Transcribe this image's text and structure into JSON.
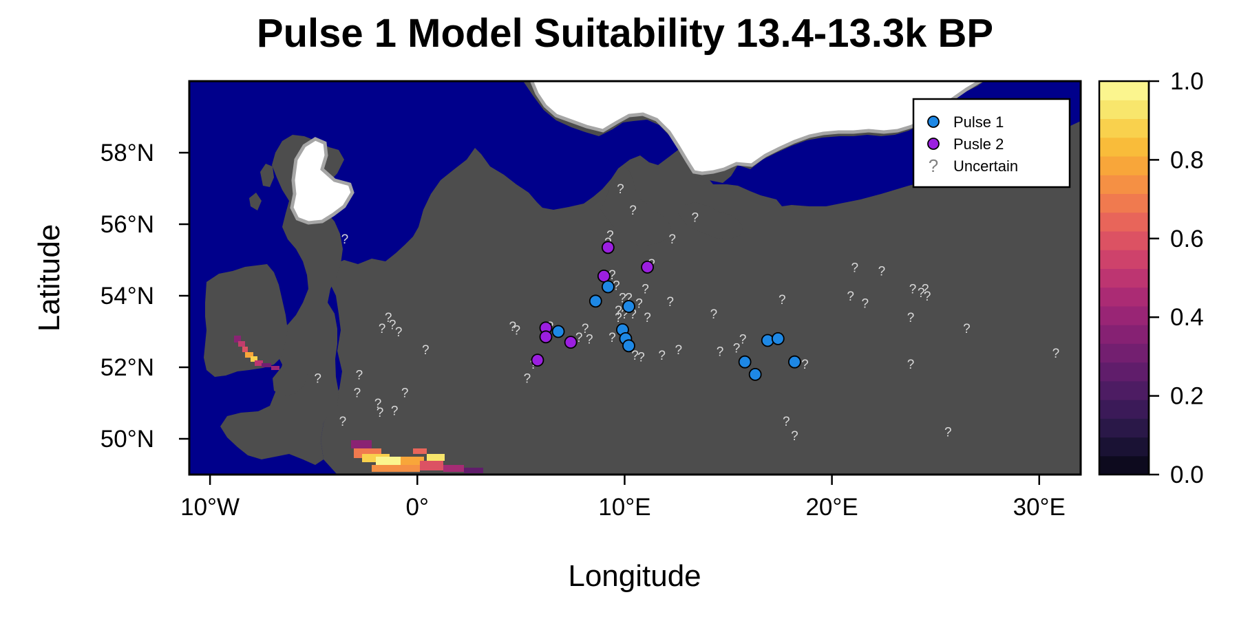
{
  "chart_data": {
    "type": "map",
    "title": "Pulse 1 Model Suitability 13.4-13.3k BP",
    "xlabel": "Longitude",
    "ylabel": "Latitude",
    "xlim": [
      -11,
      32
    ],
    "ylim": [
      49,
      60
    ],
    "x_ticks": [
      {
        "value": -10,
        "label": "10°W"
      },
      {
        "value": 0,
        "label": "0°"
      },
      {
        "value": 10,
        "label": "10°E"
      },
      {
        "value": 20,
        "label": "20°E"
      },
      {
        "value": 30,
        "label": "30°E"
      }
    ],
    "y_ticks": [
      {
        "value": 50,
        "label": "50°N"
      },
      {
        "value": 52,
        "label": "52°N"
      },
      {
        "value": 54,
        "label": "54°N"
      },
      {
        "value": 56,
        "label": "56°N"
      },
      {
        "value": 58,
        "label": "58°N"
      }
    ],
    "colorbar": {
      "range": [
        0,
        1
      ],
      "ticks": [
        {
          "value": 0.0,
          "label": "0.0"
        },
        {
          "value": 0.2,
          "label": "0.2"
        },
        {
          "value": 0.4,
          "label": "0.4"
        },
        {
          "value": 0.6,
          "label": "0.6"
        },
        {
          "value": 0.8,
          "label": "0.8"
        },
        {
          "value": 1.0,
          "label": "1.0"
        }
      ],
      "colors": [
        "#0d0a1e",
        "#1a1234",
        "#2a1848",
        "#3b1a58",
        "#4d1c63",
        "#601d6b",
        "#731f70",
        "#862173",
        "#992575",
        "#ab2b74",
        "#bd3571",
        "#ce426b",
        "#dc5263",
        "#e8655a",
        "#f07a4f",
        "#f59044",
        "#f8a63a",
        "#f9bc3a",
        "#f9d14d",
        "#f8e66c",
        "#fbf58e"
      ]
    },
    "legend": {
      "position": "top-right",
      "entries": [
        {
          "label": "Pulse 1",
          "marker": "circle",
          "color": "#1e88e5"
        },
        {
          "label": "Pusle 2",
          "marker": "circle",
          "color": "#9b1fe0"
        },
        {
          "label": "Uncertain",
          "marker": "?",
          "color": "#808080"
        }
      ]
    },
    "colors": {
      "sea": "#00008b",
      "land": "#4d4d4d",
      "ice": "#ffffff",
      "ice_edge": "#a6a6a6"
    },
    "pulse1_sites": [
      [
        8.6,
        53.85
      ],
      [
        9.2,
        54.25
      ],
      [
        10.2,
        53.7
      ],
      [
        6.8,
        53.0
      ],
      [
        9.9,
        53.05
      ],
      [
        10.05,
        52.8
      ],
      [
        10.2,
        52.6
      ],
      [
        15.8,
        52.15
      ],
      [
        16.3,
        51.8
      ],
      [
        16.9,
        52.75
      ],
      [
        17.4,
        52.8
      ],
      [
        18.2,
        52.15
      ]
    ],
    "pulse2_sites": [
      [
        9.2,
        55.35
      ],
      [
        9.0,
        54.55
      ],
      [
        11.1,
        54.8
      ],
      [
        6.2,
        53.1
      ],
      [
        6.2,
        52.85
      ],
      [
        7.4,
        52.7
      ],
      [
        5.8,
        52.2
      ]
    ],
    "uncertain_sites": [
      [
        9.8,
        57.0
      ],
      [
        10.4,
        56.4
      ],
      [
        13.4,
        56.2
      ],
      [
        12.3,
        55.6
      ],
      [
        9.3,
        55.7
      ],
      [
        9.2,
        55.5
      ],
      [
        11.3,
        54.9
      ],
      [
        9.4,
        54.6
      ],
      [
        9.6,
        54.3
      ],
      [
        11.0,
        54.2
      ],
      [
        9.9,
        53.95
      ],
      [
        10.2,
        53.95
      ],
      [
        10.7,
        53.8
      ],
      [
        9.7,
        53.6
      ],
      [
        10.0,
        53.5
      ],
      [
        9.7,
        53.4
      ],
      [
        10.4,
        53.5
      ],
      [
        11.1,
        53.4
      ],
      [
        12.2,
        53.85
      ],
      [
        14.3,
        53.5
      ],
      [
        8.1,
        53.1
      ],
      [
        7.8,
        52.85
      ],
      [
        8.3,
        52.8
      ],
      [
        9.4,
        52.85
      ],
      [
        10.5,
        52.35
      ],
      [
        10.8,
        52.3
      ],
      [
        11.8,
        52.35
      ],
      [
        12.6,
        52.5
      ],
      [
        14.6,
        52.45
      ],
      [
        15.4,
        52.55
      ],
      [
        15.7,
        52.8
      ],
      [
        4.6,
        53.15
      ],
      [
        4.8,
        53.05
      ],
      [
        6.4,
        53.15
      ],
      [
        5.6,
        52.1
      ],
      [
        5.3,
        51.7
      ],
      [
        -3.5,
        55.6
      ],
      [
        -1.4,
        53.4
      ],
      [
        -1.7,
        53.1
      ],
      [
        -1.2,
        53.2
      ],
      [
        -0.9,
        53.0
      ],
      [
        0.4,
        52.5
      ],
      [
        -4.8,
        51.7
      ],
      [
        -2.8,
        51.8
      ],
      [
        -2.9,
        51.3
      ],
      [
        -0.6,
        51.3
      ],
      [
        -1.9,
        51.0
      ],
      [
        -1.1,
        50.8
      ],
      [
        -1.8,
        50.75
      ],
      [
        -3.6,
        50.5
      ],
      [
        17.6,
        53.9
      ],
      [
        20.9,
        54.0
      ],
      [
        21.6,
        53.8
      ],
      [
        21.1,
        54.8
      ],
      [
        22.4,
        54.7
      ],
      [
        23.9,
        54.2
      ],
      [
        24.3,
        54.1
      ],
      [
        24.5,
        54.2
      ],
      [
        24.6,
        54.0
      ],
      [
        23.8,
        53.4
      ],
      [
        26.5,
        53.1
      ],
      [
        23.8,
        52.1
      ],
      [
        18.7,
        52.1
      ],
      [
        17.8,
        50.5
      ],
      [
        18.2,
        50.1
      ],
      [
        25.6,
        50.2
      ],
      [
        30.8,
        52.4
      ]
    ]
  }
}
